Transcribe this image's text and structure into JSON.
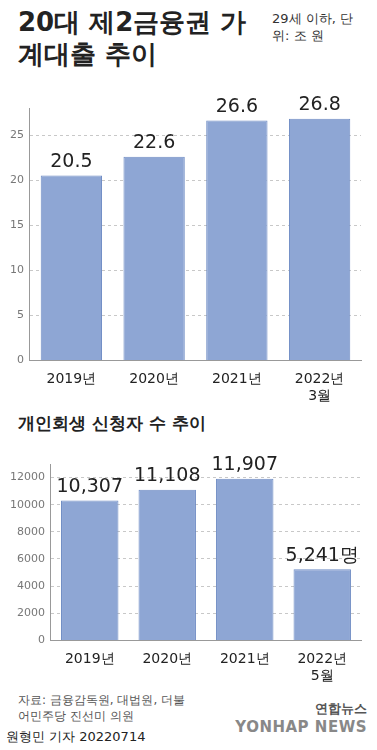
{
  "chart_data": [
    {
      "type": "bar",
      "title": "20대 제2금융권 가계대출 추이",
      "subtitle": "29세 이하, 단위: 조 원",
      "categories": [
        "2019년",
        "2020년",
        "2021년",
        "2022년 3월"
      ],
      "values": [
        20.5,
        22.6,
        26.6,
        26.8
      ],
      "color": "#8ea6d4",
      "ylim": [
        0,
        28
      ],
      "yticks": [
        0,
        5,
        10,
        15,
        20,
        25
      ],
      "grid": true,
      "data_labels": true
    },
    {
      "type": "bar",
      "title": "개인회생 신청자 수 추이",
      "categories": [
        "2019년",
        "2020년",
        "2021년",
        "2022년 5월"
      ],
      "values": [
        10307,
        11108,
        11907,
        5241
      ],
      "value_labels": [
        "10,307",
        "11,108",
        "11,907",
        "5,241명"
      ],
      "color": "#8ea6d4",
      "ylim": [
        0,
        13000
      ],
      "yticks": [
        0,
        2000,
        4000,
        6000,
        8000,
        10000,
        12000
      ],
      "grid": true,
      "data_labels": true
    }
  ],
  "source": "자료: 금융감독원, 대법원, 더불어민주당 진선미 의원",
  "author": "원형민 기자",
  "date": "20220714",
  "logo": "연합뉴스",
  "logo_en": "YONHAP NEWS"
}
